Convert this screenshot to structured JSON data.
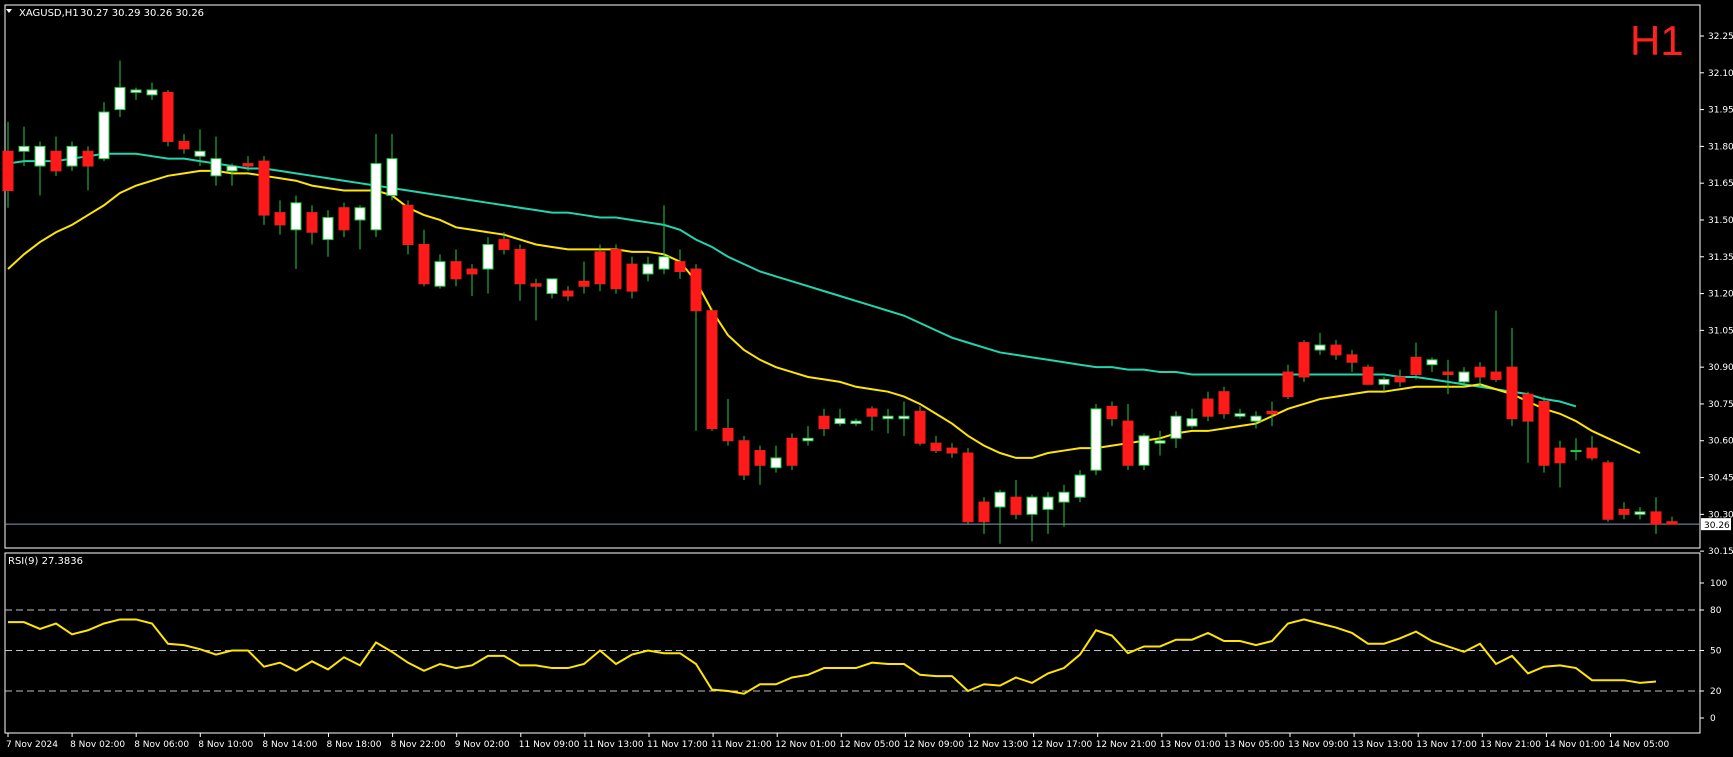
{
  "header": {
    "symbol": "XAGUSD,H1",
    "ohlc": "30.27 30.29 30.26 30.26",
    "timeframe_badge": "H1"
  },
  "colors": {
    "background": "#000000",
    "bull_candle": "#ffffff",
    "bear_candle": "#ff1a1a",
    "wick": "#22cc44",
    "ma_fast": "#ffe600",
    "ma_slow": "#20d6b0",
    "rsi_line": "#ffe600",
    "grid_dash": "#bfbfbf",
    "bid_line": "#7f9cb8",
    "axis": "#ffffff"
  },
  "price_axis": {
    "ticks": [
      "32.25",
      "32.10",
      "31.95",
      "31.80",
      "31.65",
      "31.50",
      "31.35",
      "31.20",
      "31.05",
      "30.90",
      "30.75",
      "30.60",
      "30.45",
      "30.30",
      "30.15"
    ],
    "range": [
      30.1,
      32.3
    ],
    "current_price_label": "30.26"
  },
  "rsi": {
    "label": "RSI(9) 27.3836",
    "levels": [
      80,
      50,
      20
    ],
    "axis_ticks": [
      "100",
      "80",
      "50",
      "20",
      "0"
    ]
  },
  "time_axis": {
    "labels": [
      "7 Nov 2024",
      "8 Nov 02:00",
      "8 Nov 06:00",
      "8 Nov 10:00",
      "8 Nov 14:00",
      "8 Nov 18:00",
      "8 Nov 22:00",
      "9 Nov 02:00",
      "11 Nov 09:00",
      "11 Nov 13:00",
      "11 Nov 17:00",
      "11 Nov 21:00",
      "12 Nov 01:00",
      "12 Nov 05:00",
      "12 Nov 09:00",
      "12 Nov 13:00",
      "12 Nov 17:00",
      "12 Nov 21:00",
      "13 Nov 01:00",
      "13 Nov 05:00",
      "13 Nov 09:00",
      "13 Nov 13:00",
      "13 Nov 17:00",
      "13 Nov 21:00",
      "14 Nov 01:00",
      "14 Nov 05:00"
    ]
  },
  "chart_data": {
    "type": "candlestick",
    "symbol": "XAGUSD",
    "timeframe": "H1",
    "ylim": [
      30.1,
      32.3
    ],
    "candles": [
      {
        "o": 31.78,
        "h": 31.9,
        "l": 31.55,
        "c": 31.62
      },
      {
        "o": 31.78,
        "h": 31.88,
        "l": 31.72,
        "c": 31.8
      },
      {
        "o": 31.72,
        "h": 31.82,
        "l": 31.6,
        "c": 31.8
      },
      {
        "o": 31.78,
        "h": 31.84,
        "l": 31.68,
        "c": 31.7
      },
      {
        "o": 31.72,
        "h": 31.82,
        "l": 31.7,
        "c": 31.8
      },
      {
        "o": 31.78,
        "h": 31.8,
        "l": 31.62,
        "c": 31.72
      },
      {
        "o": 31.75,
        "h": 31.98,
        "l": 31.74,
        "c": 31.94
      },
      {
        "o": 31.95,
        "h": 32.15,
        "l": 31.92,
        "c": 32.04
      },
      {
        "o": 32.02,
        "h": 32.04,
        "l": 31.99,
        "c": 32.03
      },
      {
        "o": 32.01,
        "h": 32.06,
        "l": 31.99,
        "c": 32.03
      },
      {
        "o": 32.02,
        "h": 32.03,
        "l": 31.8,
        "c": 31.82
      },
      {
        "o": 31.82,
        "h": 31.85,
        "l": 31.77,
        "c": 31.79
      },
      {
        "o": 31.76,
        "h": 31.87,
        "l": 31.72,
        "c": 31.78
      },
      {
        "o": 31.68,
        "h": 31.84,
        "l": 31.64,
        "c": 31.75
      },
      {
        "o": 31.7,
        "h": 31.73,
        "l": 31.64,
        "c": 31.72
      },
      {
        "o": 31.73,
        "h": 31.76,
        "l": 31.7,
        "c": 31.72
      },
      {
        "o": 31.74,
        "h": 31.76,
        "l": 31.48,
        "c": 31.52
      },
      {
        "o": 31.53,
        "h": 31.58,
        "l": 31.44,
        "c": 31.48
      },
      {
        "o": 31.46,
        "h": 31.6,
        "l": 31.3,
        "c": 31.57
      },
      {
        "o": 31.53,
        "h": 31.56,
        "l": 31.4,
        "c": 31.45
      },
      {
        "o": 31.42,
        "h": 31.54,
        "l": 31.35,
        "c": 31.51
      },
      {
        "o": 31.55,
        "h": 31.57,
        "l": 31.43,
        "c": 31.46
      },
      {
        "o": 31.5,
        "h": 31.56,
        "l": 31.38,
        "c": 31.55
      },
      {
        "o": 31.46,
        "h": 31.85,
        "l": 31.43,
        "c": 31.73
      },
      {
        "o": 31.6,
        "h": 31.85,
        "l": 31.58,
        "c": 31.75
      },
      {
        "o": 31.56,
        "h": 31.58,
        "l": 31.36,
        "c": 31.4
      },
      {
        "o": 31.4,
        "h": 31.46,
        "l": 31.23,
        "c": 31.24
      },
      {
        "o": 31.23,
        "h": 31.36,
        "l": 31.22,
        "c": 31.33
      },
      {
        "o": 31.33,
        "h": 31.38,
        "l": 31.23,
        "c": 31.26
      },
      {
        "o": 31.3,
        "h": 31.32,
        "l": 31.19,
        "c": 31.28
      },
      {
        "o": 31.3,
        "h": 31.43,
        "l": 31.2,
        "c": 31.4
      },
      {
        "o": 31.42,
        "h": 31.45,
        "l": 31.36,
        "c": 31.38
      },
      {
        "o": 31.38,
        "h": 31.4,
        "l": 31.17,
        "c": 31.24
      },
      {
        "o": 31.24,
        "h": 31.26,
        "l": 31.09,
        "c": 31.23
      },
      {
        "o": 31.2,
        "h": 31.26,
        "l": 31.18,
        "c": 31.26
      },
      {
        "o": 31.21,
        "h": 31.23,
        "l": 31.17,
        "c": 31.19
      },
      {
        "o": 31.25,
        "h": 31.33,
        "l": 31.2,
        "c": 31.23
      },
      {
        "o": 31.37,
        "h": 31.4,
        "l": 31.21,
        "c": 31.24
      },
      {
        "o": 31.38,
        "h": 31.4,
        "l": 31.2,
        "c": 31.22
      },
      {
        "o": 31.32,
        "h": 31.35,
        "l": 31.18,
        "c": 31.21
      },
      {
        "o": 31.28,
        "h": 31.35,
        "l": 31.25,
        "c": 31.32
      },
      {
        "o": 31.3,
        "h": 31.56,
        "l": 31.28,
        "c": 31.35
      },
      {
        "o": 31.33,
        "h": 31.38,
        "l": 31.26,
        "c": 31.29
      },
      {
        "o": 31.3,
        "h": 31.32,
        "l": 30.64,
        "c": 31.13
      },
      {
        "o": 31.13,
        "h": 31.14,
        "l": 30.64,
        "c": 30.65
      },
      {
        "o": 30.65,
        "h": 30.77,
        "l": 30.58,
        "c": 30.6
      },
      {
        "o": 30.6,
        "h": 30.62,
        "l": 30.44,
        "c": 30.46
      },
      {
        "o": 30.56,
        "h": 30.58,
        "l": 30.42,
        "c": 30.5
      },
      {
        "o": 30.49,
        "h": 30.58,
        "l": 30.47,
        "c": 30.53
      },
      {
        "o": 30.61,
        "h": 30.63,
        "l": 30.48,
        "c": 30.5
      },
      {
        "o": 30.6,
        "h": 30.66,
        "l": 30.58,
        "c": 30.61
      },
      {
        "o": 30.7,
        "h": 30.73,
        "l": 30.62,
        "c": 30.65
      },
      {
        "o": 30.67,
        "h": 30.73,
        "l": 30.66,
        "c": 30.69
      },
      {
        "o": 30.67,
        "h": 30.69,
        "l": 30.66,
        "c": 30.68
      },
      {
        "o": 30.73,
        "h": 30.74,
        "l": 30.64,
        "c": 30.7
      },
      {
        "o": 30.69,
        "h": 30.73,
        "l": 30.63,
        "c": 30.7
      },
      {
        "o": 30.69,
        "h": 30.76,
        "l": 30.62,
        "c": 30.7
      },
      {
        "o": 30.72,
        "h": 30.74,
        "l": 30.58,
        "c": 30.59
      },
      {
        "o": 30.59,
        "h": 30.62,
        "l": 30.55,
        "c": 30.56
      },
      {
        "o": 30.57,
        "h": 30.59,
        "l": 30.53,
        "c": 30.55
      },
      {
        "o": 30.55,
        "h": 30.57,
        "l": 30.26,
        "c": 30.27
      },
      {
        "o": 30.35,
        "h": 30.37,
        "l": 30.22,
        "c": 30.27
      },
      {
        "o": 30.33,
        "h": 30.4,
        "l": 30.18,
        "c": 30.39
      },
      {
        "o": 30.37,
        "h": 30.44,
        "l": 30.28,
        "c": 30.3
      },
      {
        "o": 30.3,
        "h": 30.38,
        "l": 30.19,
        "c": 30.37
      },
      {
        "o": 30.32,
        "h": 30.39,
        "l": 30.22,
        "c": 30.37
      },
      {
        "o": 30.35,
        "h": 30.42,
        "l": 30.25,
        "c": 30.39
      },
      {
        "o": 30.37,
        "h": 30.48,
        "l": 30.35,
        "c": 30.46
      },
      {
        "o": 30.48,
        "h": 30.75,
        "l": 30.46,
        "c": 30.73
      },
      {
        "o": 30.74,
        "h": 30.76,
        "l": 30.66,
        "c": 30.69
      },
      {
        "o": 30.68,
        "h": 30.75,
        "l": 30.48,
        "c": 30.5
      },
      {
        "o": 30.5,
        "h": 30.63,
        "l": 30.48,
        "c": 30.62
      },
      {
        "o": 30.59,
        "h": 30.64,
        "l": 30.54,
        "c": 30.6
      },
      {
        "o": 30.61,
        "h": 30.72,
        "l": 30.57,
        "c": 30.7
      },
      {
        "o": 30.66,
        "h": 30.73,
        "l": 30.65,
        "c": 30.69
      },
      {
        "o": 30.77,
        "h": 30.8,
        "l": 30.68,
        "c": 30.7
      },
      {
        "o": 30.8,
        "h": 30.82,
        "l": 30.69,
        "c": 30.71
      },
      {
        "o": 30.7,
        "h": 30.73,
        "l": 30.69,
        "c": 30.71
      },
      {
        "o": 30.68,
        "h": 30.72,
        "l": 30.65,
        "c": 30.7
      },
      {
        "o": 30.72,
        "h": 30.76,
        "l": 30.66,
        "c": 30.71
      },
      {
        "o": 30.88,
        "h": 30.91,
        "l": 30.77,
        "c": 30.78
      },
      {
        "o": 31.0,
        "h": 31.01,
        "l": 30.84,
        "c": 30.86
      },
      {
        "o": 30.97,
        "h": 31.04,
        "l": 30.95,
        "c": 30.99
      },
      {
        "o": 30.99,
        "h": 31.01,
        "l": 30.93,
        "c": 30.95
      },
      {
        "o": 30.95,
        "h": 30.97,
        "l": 30.88,
        "c": 30.92
      },
      {
        "o": 30.9,
        "h": 30.91,
        "l": 30.84,
        "c": 30.83
      },
      {
        "o": 30.83,
        "h": 30.86,
        "l": 30.8,
        "c": 30.85
      },
      {
        "o": 30.86,
        "h": 30.89,
        "l": 30.82,
        "c": 30.84
      },
      {
        "o": 30.94,
        "h": 31.0,
        "l": 30.85,
        "c": 30.87
      },
      {
        "o": 30.91,
        "h": 30.94,
        "l": 30.88,
        "c": 30.93
      },
      {
        "o": 30.88,
        "h": 30.93,
        "l": 30.79,
        "c": 30.87
      },
      {
        "o": 30.84,
        "h": 30.9,
        "l": 30.82,
        "c": 30.88
      },
      {
        "o": 30.9,
        "h": 30.92,
        "l": 30.82,
        "c": 30.86
      },
      {
        "o": 30.88,
        "h": 31.13,
        "l": 30.84,
        "c": 30.85
      },
      {
        "o": 30.9,
        "h": 31.06,
        "l": 30.66,
        "c": 30.69
      },
      {
        "o": 30.79,
        "h": 30.8,
        "l": 30.51,
        "c": 30.68
      },
      {
        "o": 30.76,
        "h": 30.78,
        "l": 30.47,
        "c": 30.5
      },
      {
        "o": 30.57,
        "h": 30.6,
        "l": 30.41,
        "c": 30.51
      },
      {
        "o": 30.56,
        "h": 30.61,
        "l": 30.52,
        "c": 30.56
      },
      {
        "o": 30.57,
        "h": 30.62,
        "l": 30.52,
        "c": 30.53
      },
      {
        "o": 30.51,
        "h": 30.52,
        "l": 30.27,
        "c": 30.28
      },
      {
        "o": 30.32,
        "h": 30.35,
        "l": 30.28,
        "c": 30.3
      },
      {
        "o": 30.3,
        "h": 30.33,
        "l": 30.28,
        "c": 30.31
      },
      {
        "o": 30.31,
        "h": 30.37,
        "l": 30.22,
        "c": 30.26
      },
      {
        "o": 30.27,
        "h": 30.29,
        "l": 30.26,
        "c": 30.26
      }
    ],
    "ma_fast": [
      31.3,
      31.36,
      31.41,
      31.45,
      31.48,
      31.52,
      31.56,
      31.61,
      31.64,
      31.66,
      31.68,
      31.69,
      31.7,
      31.7,
      31.69,
      31.69,
      31.68,
      31.67,
      31.66,
      31.64,
      31.63,
      31.62,
      31.62,
      31.62,
      31.6,
      31.55,
      31.52,
      31.5,
      31.47,
      31.46,
      31.45,
      31.44,
      31.42,
      31.4,
      31.39,
      31.38,
      31.38,
      31.38,
      31.38,
      31.37,
      31.37,
      31.36,
      31.33,
      31.25,
      31.13,
      31.03,
      30.97,
      30.93,
      30.9,
      30.88,
      30.86,
      30.85,
      30.84,
      30.82,
      30.81,
      30.8,
      30.78,
      30.75,
      30.71,
      30.67,
      30.62,
      30.58,
      30.55,
      30.53,
      30.53,
      30.55,
      30.56,
      30.57,
      30.57,
      30.58,
      30.59,
      30.6,
      30.61,
      30.63,
      30.64,
      30.64,
      30.65,
      30.66,
      30.67,
      30.7,
      30.73,
      30.75,
      30.77,
      30.78,
      30.79,
      30.8,
      30.8,
      30.81,
      30.82,
      30.82,
      30.82,
      30.82,
      30.83,
      30.81,
      30.79,
      30.76,
      30.73,
      30.71,
      30.68,
      30.64,
      30.61,
      30.58,
      30.55
    ],
    "ma_slow": [
      31.73,
      31.74,
      31.74,
      31.74,
      31.75,
      31.76,
      31.77,
      31.77,
      31.77,
      31.76,
      31.75,
      31.75,
      31.74,
      31.73,
      31.72,
      31.71,
      31.71,
      31.7,
      31.69,
      31.68,
      31.67,
      31.66,
      31.65,
      31.64,
      31.63,
      31.62,
      31.61,
      31.6,
      31.59,
      31.58,
      31.57,
      31.56,
      31.55,
      31.54,
      31.53,
      31.53,
      31.52,
      31.51,
      31.51,
      31.5,
      31.49,
      31.48,
      31.46,
      31.42,
      31.39,
      31.35,
      31.32,
      31.29,
      31.27,
      31.25,
      31.23,
      31.21,
      31.19,
      31.17,
      31.15,
      31.13,
      31.11,
      31.08,
      31.05,
      31.02,
      31.0,
      30.98,
      30.96,
      30.95,
      30.94,
      30.93,
      30.92,
      30.91,
      30.9,
      30.9,
      30.89,
      30.89,
      30.88,
      30.88,
      30.87,
      30.87,
      30.87,
      30.87,
      30.87,
      30.87,
      30.87,
      30.87,
      30.87,
      30.87,
      30.87,
      30.87,
      30.87,
      30.86,
      30.86,
      30.85,
      30.84,
      30.83,
      30.82,
      30.81,
      30.8,
      30.79,
      30.77,
      30.76,
      30.74
    ],
    "rsi": [
      71,
      71,
      66,
      70,
      62,
      65,
      70,
      73,
      73,
      70,
      55,
      54,
      51,
      47,
      50,
      50,
      38,
      41,
      35,
      42,
      36,
      45,
      39,
      56,
      49,
      41,
      35,
      40,
      37,
      39,
      46,
      46,
      39,
      39,
      37,
      37,
      40,
      50,
      40,
      47,
      50,
      48,
      48,
      40,
      21,
      20,
      18,
      25,
      25,
      30,
      32,
      37,
      37,
      37,
      41,
      40,
      40,
      32,
      31,
      31,
      20,
      25,
      24,
      30,
      26,
      33,
      37,
      47,
      65,
      61,
      48,
      53,
      53,
      58,
      58,
      63,
      57,
      57,
      54,
      57,
      70,
      73,
      70,
      67,
      63,
      55,
      55,
      59,
      64,
      57,
      53,
      49,
      55,
      40,
      46,
      33,
      38,
      39,
      37,
      28,
      28,
      28,
      26,
      27
    ]
  }
}
